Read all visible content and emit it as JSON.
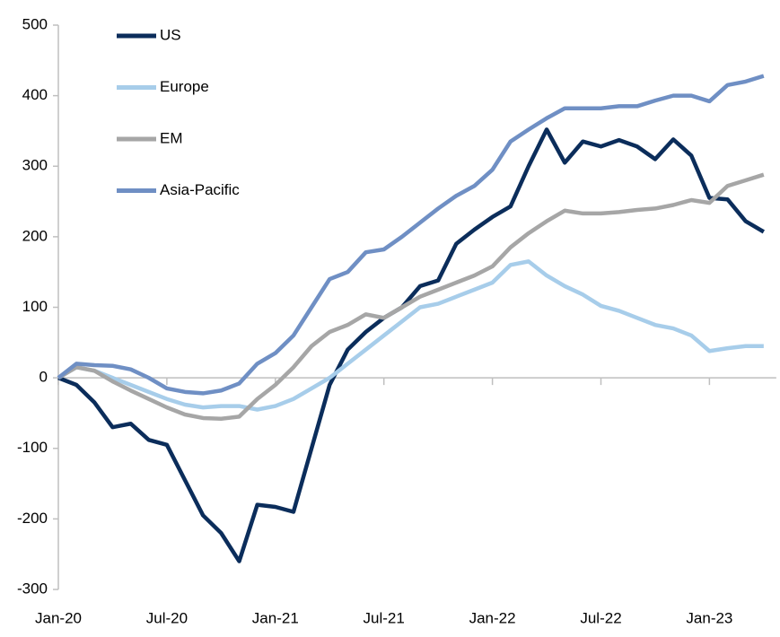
{
  "chart_data": {
    "type": "line",
    "categories": [
      "Jan-20",
      null,
      null,
      null,
      null,
      null,
      "Jul-20",
      null,
      null,
      null,
      null,
      null,
      "Jan-21",
      null,
      null,
      null,
      null,
      null,
      "Jul-21",
      null,
      null,
      null,
      null,
      null,
      "Jan-22",
      null,
      null,
      null,
      null,
      null,
      "Jul-22",
      null,
      null,
      null,
      null,
      null,
      "Jan-23",
      null,
      null,
      null
    ],
    "series": [
      {
        "name": "US",
        "color": "#0b2d5b",
        "values": [
          0,
          -10,
          -35,
          -70,
          -65,
          -88,
          -95,
          -145,
          -195,
          -220,
          -260,
          -180,
          -183,
          -190,
          -100,
          -10,
          40,
          65,
          85,
          100,
          130,
          138,
          190,
          210,
          228,
          243,
          300,
          352,
          305,
          335,
          328,
          337,
          328,
          310,
          338,
          315,
          255,
          253,
          222,
          207
        ]
      },
      {
        "name": "Europe",
        "color": "#a7cdea",
        "values": [
          0,
          15,
          10,
          0,
          -10,
          -20,
          -30,
          -38,
          -42,
          -40,
          -40,
          -45,
          -40,
          -30,
          -15,
          0,
          20,
          40,
          60,
          80,
          100,
          105,
          115,
          125,
          135,
          160,
          165,
          145,
          130,
          118,
          102,
          95,
          85,
          75,
          70,
          60,
          38,
          42,
          45,
          45
        ]
      },
      {
        "name": "EM",
        "color": "#a6a6a6",
        "values": [
          0,
          15,
          10,
          -5,
          -18,
          -30,
          -42,
          -52,
          -57,
          -58,
          -55,
          -30,
          -10,
          15,
          45,
          65,
          75,
          90,
          85,
          100,
          115,
          125,
          135,
          145,
          158,
          185,
          205,
          222,
          237,
          233,
          233,
          235,
          238,
          240,
          245,
          252,
          248,
          272,
          280,
          288
        ]
      },
      {
        "name": "Asia-Pacific",
        "color": "#6f8fc4",
        "values": [
          0,
          20,
          18,
          17,
          12,
          0,
          -15,
          -20,
          -22,
          -18,
          -8,
          20,
          35,
          60,
          100,
          140,
          150,
          178,
          182,
          200,
          220,
          240,
          258,
          272,
          295,
          335,
          352,
          368,
          382,
          382,
          382,
          385,
          385,
          393,
          400,
          400,
          392,
          415,
          420,
          428
        ]
      }
    ],
    "ylim": [
      -300,
      500
    ],
    "yticks": [
      -300,
      -200,
      -100,
      0,
      100,
      200,
      300,
      400,
      500
    ],
    "grid": false,
    "legend": "upper left"
  }
}
